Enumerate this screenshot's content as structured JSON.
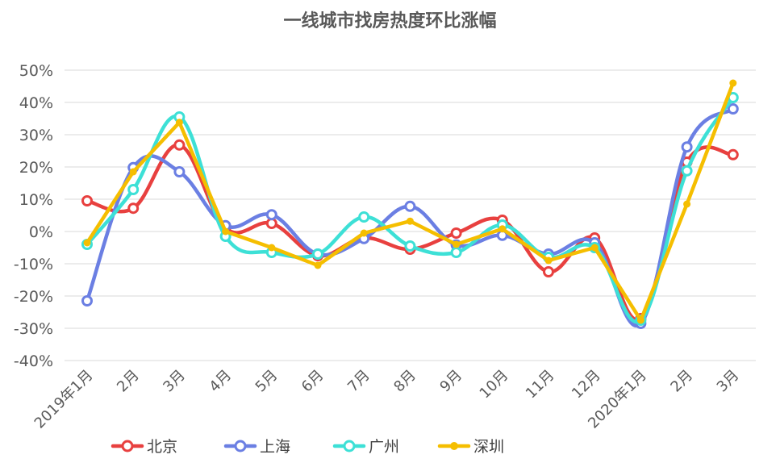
{
  "chart_data": {
    "type": "line",
    "title": "一线城市找房热度环比涨幅",
    "xlabel": "",
    "ylabel": "",
    "categories": [
      "2019年1月",
      "2月",
      "3月",
      "4月",
      "5月",
      "6月",
      "7月",
      "8月",
      "9月",
      "10月",
      "11月",
      "12月",
      "2020年1月",
      "2月",
      "3月"
    ],
    "y_ticks": [
      "50%",
      "40%",
      "30%",
      "20%",
      "10%",
      "0%",
      "-10%",
      "-20%",
      "-30%",
      "-40%"
    ],
    "ylim": [
      -40,
      50
    ],
    "grid": true,
    "legend_position": "bottom",
    "series": [
      {
        "name": "北京",
        "color": "#e8403f",
        "marker": "open-circle",
        "smooth": true,
        "values": [
          9.5,
          7.2,
          26.8,
          1.0,
          2.5,
          -7.5,
          -2.0,
          -5.5,
          -0.5,
          3.5,
          -12.5,
          -2.0,
          -27.0,
          21.5,
          23.8
        ]
      },
      {
        "name": "上海",
        "color": "#6b7fe3",
        "marker": "open-circle",
        "smooth": true,
        "values": [
          -21.5,
          19.8,
          18.5,
          1.8,
          5.2,
          -7.0,
          -2.2,
          7.8,
          -4.2,
          -1.2,
          -7.0,
          -3.5,
          -28.5,
          26.2,
          38.0
        ]
      },
      {
        "name": "广州",
        "color": "#3de0d6",
        "marker": "open-circle",
        "smooth": true,
        "values": [
          -4.0,
          13.0,
          35.5,
          -1.5,
          -6.5,
          -7.0,
          4.5,
          -4.5,
          -6.5,
          2.0,
          -8.0,
          -5.0,
          -27.5,
          18.8,
          41.5
        ]
      },
      {
        "name": "深圳",
        "color": "#f5be00",
        "marker": "filled-circle",
        "smooth": false,
        "values": [
          -3.5,
          18.5,
          33.8,
          0.0,
          -5.0,
          -10.5,
          -0.5,
          3.2,
          -4.0,
          0.8,
          -9.0,
          -5.0,
          -27.5,
          8.5,
          46.0
        ]
      }
    ]
  }
}
